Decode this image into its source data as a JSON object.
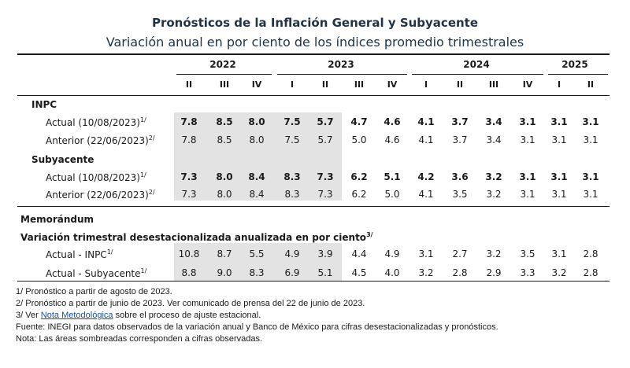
{
  "title": "Pronósticos de la Inflación General y Subyacente",
  "subtitle": "Variación anual en por ciento de los índices promedio trimestrales",
  "years": [
    {
      "label": "2022"
    },
    {
      "label": "2023"
    },
    {
      "label": "2024"
    },
    {
      "label": "2025"
    }
  ],
  "quarters": [
    "II",
    "III",
    "IV",
    "I",
    "II",
    "III",
    "IV",
    "I",
    "II",
    "III",
    "IV",
    "I",
    "II"
  ],
  "sections": [
    {
      "name": "INPC",
      "rows": [
        {
          "label": "Actual (10/08/2023)",
          "note": "1/",
          "values": [
            "7.8",
            "8.5",
            "8.0",
            "7.5",
            "5.7",
            "4.7",
            "4.6",
            "4.1",
            "3.7",
            "3.4",
            "3.1",
            "3.1",
            "3.1"
          ]
        },
        {
          "label": "Anterior (22/06/2023)",
          "note": "2/",
          "values": [
            "7.8",
            "8.5",
            "8.0",
            "7.5",
            "5.7",
            "5.0",
            "4.6",
            "4.1",
            "3.7",
            "3.4",
            "3.1",
            "3.1",
            "3.1"
          ]
        }
      ]
    },
    {
      "name": "Subyacente",
      "rows": [
        {
          "label": "Actual (10/08/2023)",
          "note": "1/",
          "values": [
            "7.3",
            "8.0",
            "8.4",
            "8.3",
            "7.3",
            "6.2",
            "5.1",
            "4.2",
            "3.6",
            "3.2",
            "3.1",
            "3.1",
            "3.1"
          ]
        },
        {
          "label": "Anterior (22/06/2023)",
          "note": "2/",
          "values": [
            "7.3",
            "8.0",
            "8.4",
            "8.3",
            "7.3",
            "6.2",
            "5.0",
            "4.1",
            "3.5",
            "3.2",
            "3.1",
            "3.1",
            "3.1"
          ]
        }
      ]
    }
  ],
  "memo": {
    "title": "Memorándum",
    "subtitle": "Variación trimestral desestacionalizada anualizada en por ciento",
    "subtitle_note": "3/",
    "rows": [
      {
        "label": "Actual - INPC",
        "note": "1/",
        "values": [
          "10.8",
          "8.7",
          "5.5",
          "4.9",
          "3.9",
          "4.4",
          "4.9",
          "3.1",
          "2.7",
          "3.2",
          "3.5",
          "3.1",
          "2.8"
        ]
      },
      {
        "label": "Actual - Subyacente",
        "note": "1/",
        "values": [
          "8.8",
          "9.0",
          "8.3",
          "6.9",
          "5.1",
          "4.5",
          "4.0",
          "3.2",
          "2.8",
          "2.9",
          "3.3",
          "3.2",
          "2.8"
        ]
      }
    ]
  },
  "notes": {
    "n1": "1/ Pronóstico a partir de agosto de 2023.",
    "n2": "2/ Pronóstico a partir de junio de 2023. Ver comunicado de prensa del 22 de junio de 2023.",
    "n3_pre": "3/ Ver ",
    "n3_link": "Nota Metodológica",
    "n3_post": " sobre el proceso de ajuste estacional.",
    "n4": "Fuente: INEGI para datos observados de la variación anual y Banco de México para cifras desestacionalizadas y pronósticos.",
    "n5": "Nota: Las áreas sombreadas corresponden a cifras observadas."
  },
  "colors": {
    "title": "#1f3246",
    "shade": "#e3e3e3",
    "link": "#1f4fa0"
  }
}
